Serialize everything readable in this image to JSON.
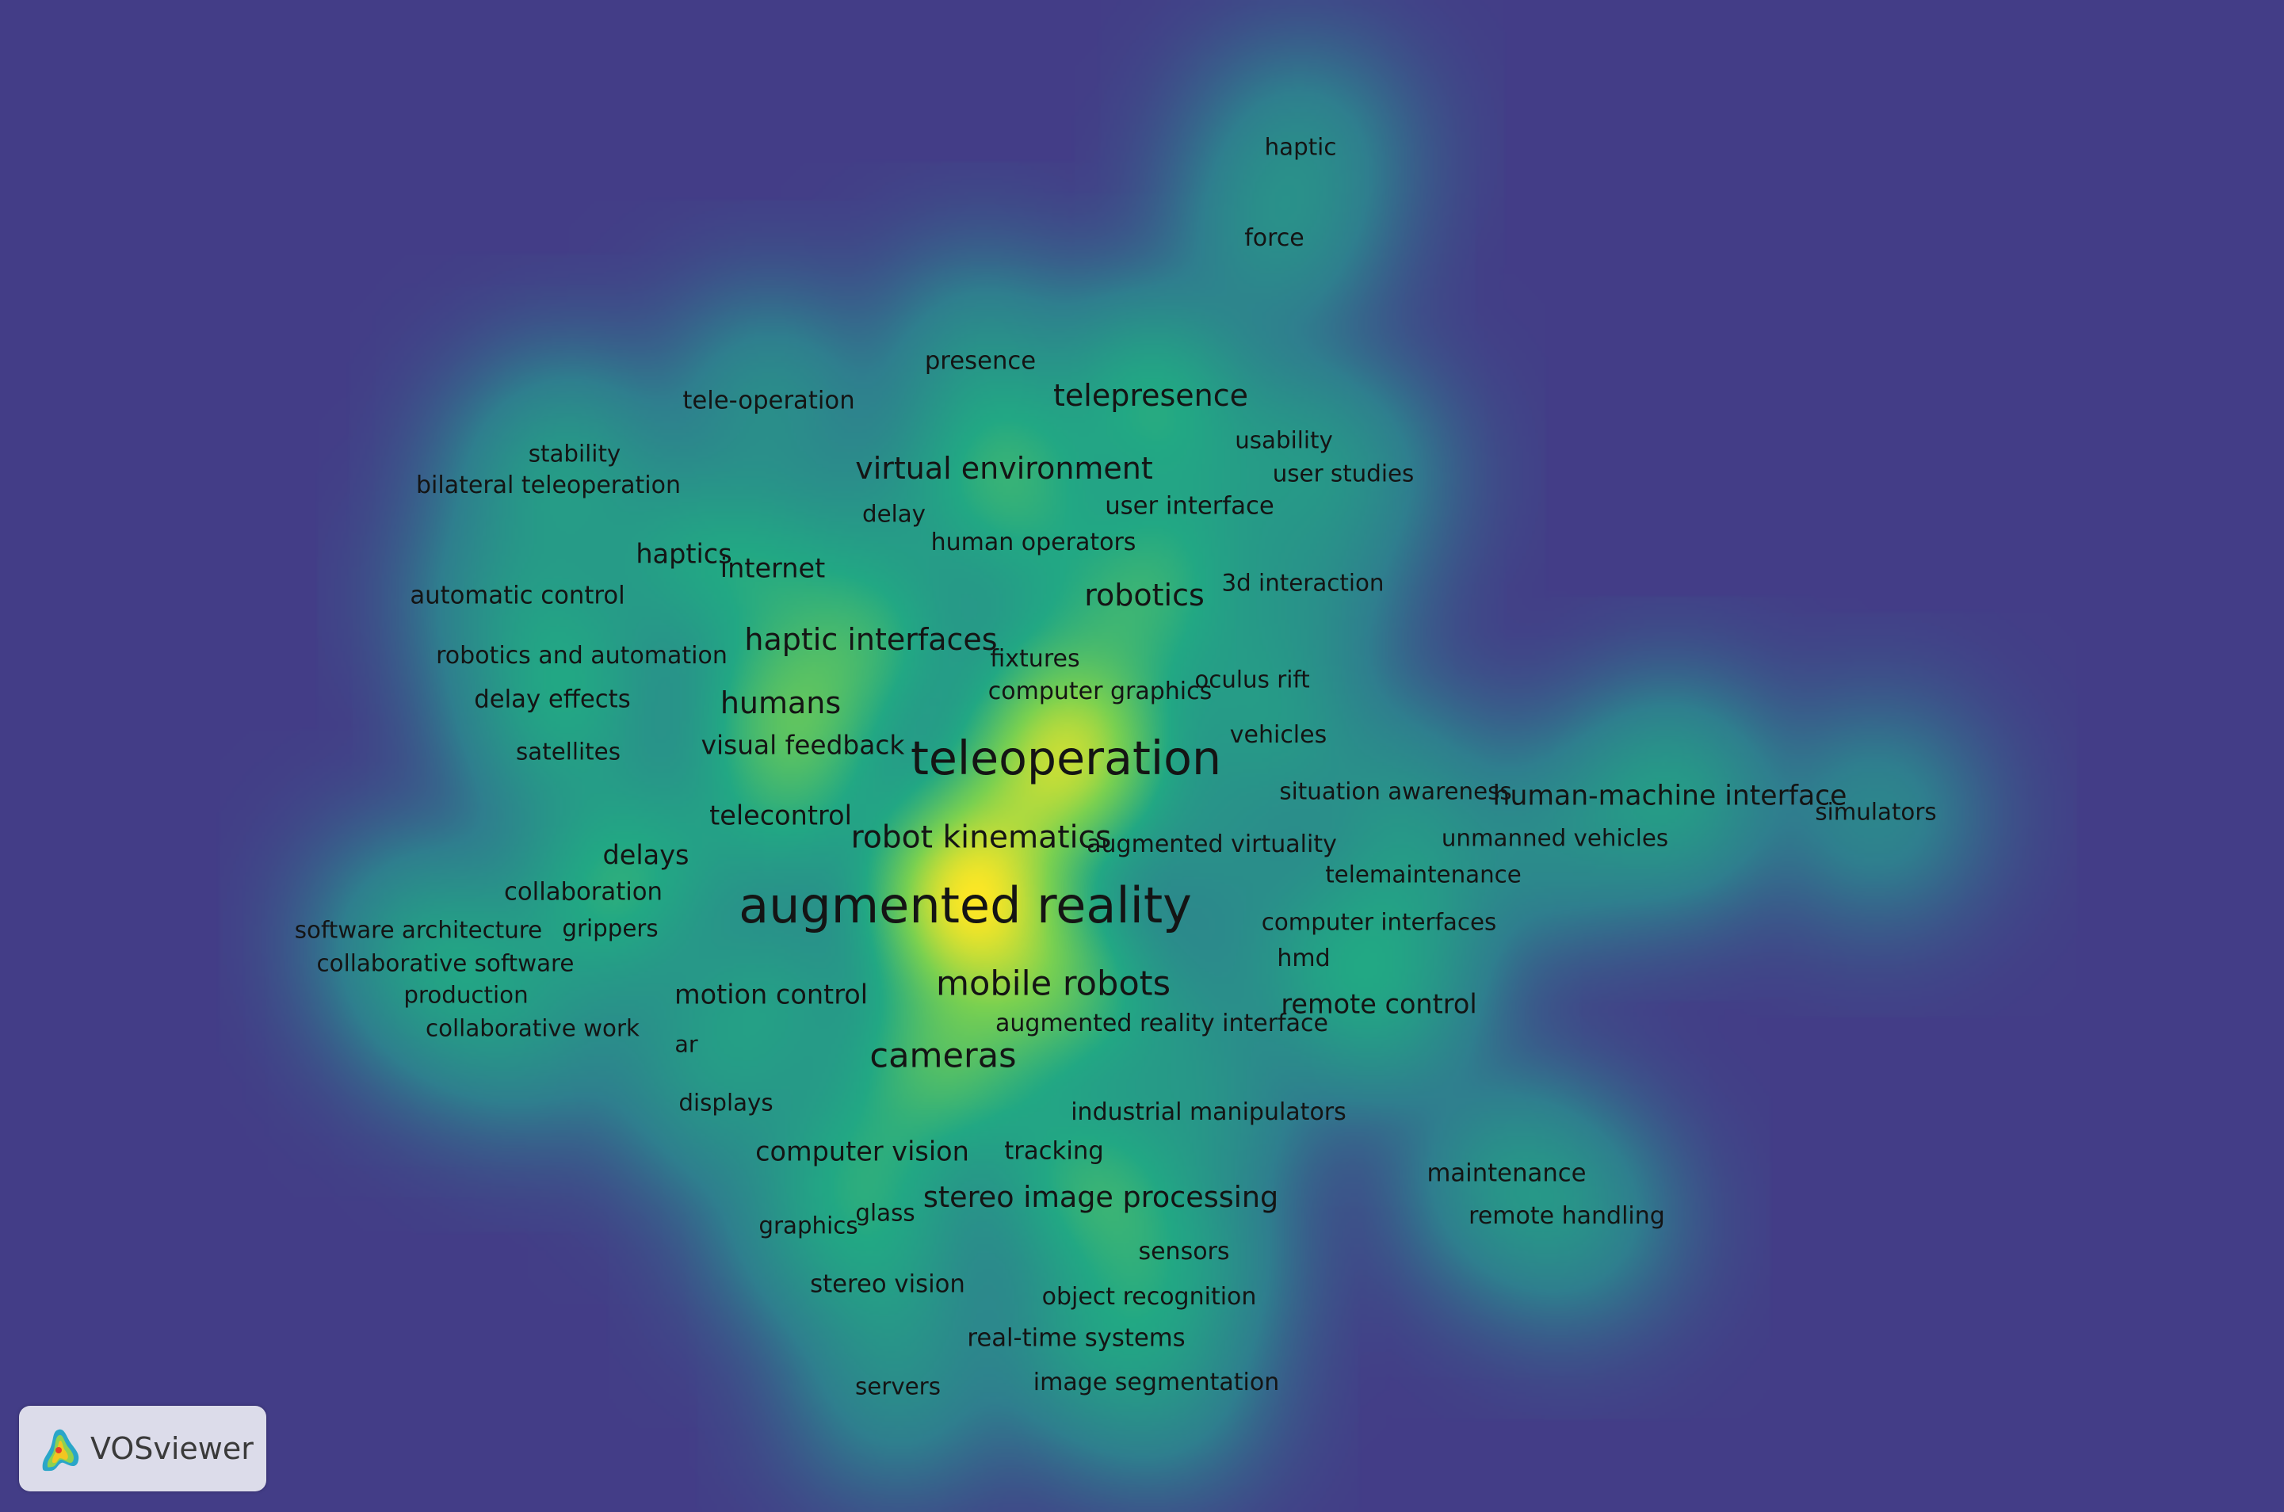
{
  "app": {
    "name": "VOSviewer"
  },
  "colors": {
    "background": "#433d87",
    "heat_ramp": [
      "#433d87",
      "#2f7f8e",
      "#22a884",
      "#7ad151",
      "#fde725"
    ],
    "label": "#141414"
  },
  "view": {
    "type": "density visualization"
  },
  "terms": [
    {
      "label": "augmented reality",
      "weight": 1.0
    },
    {
      "label": "teleoperation",
      "weight": 0.92
    },
    {
      "label": "mobile robots",
      "weight": 0.55
    },
    {
      "label": "cameras",
      "weight": 0.55
    },
    {
      "label": "robot kinematics",
      "weight": 0.45
    },
    {
      "label": "haptic interfaces",
      "weight": 0.42
    },
    {
      "label": "virtual environment",
      "weight": 0.42
    },
    {
      "label": "telepresence",
      "weight": 0.42
    },
    {
      "label": "humans",
      "weight": 0.42
    },
    {
      "label": "robotics",
      "weight": 0.42
    },
    {
      "label": "stereo image processing",
      "weight": 0.38
    },
    {
      "label": "human-machine interface",
      "weight": 0.33
    },
    {
      "label": "telecontrol",
      "weight": 0.3
    },
    {
      "label": "delays",
      "weight": 0.3
    },
    {
      "label": "motion control",
      "weight": 0.3
    },
    {
      "label": "computer vision",
      "weight": 0.3
    },
    {
      "label": "visual feedback",
      "weight": 0.28
    },
    {
      "label": "remote control",
      "weight": 0.3
    },
    {
      "label": "haptics",
      "weight": 0.3
    },
    {
      "label": "internet",
      "weight": 0.3
    },
    {
      "label": "tele-operation",
      "weight": 0.22
    },
    {
      "label": "presence",
      "weight": 0.22
    },
    {
      "label": "user interface",
      "weight": 0.22
    },
    {
      "label": "human operators",
      "weight": 0.2
    },
    {
      "label": "delay",
      "weight": 0.18
    },
    {
      "label": "usability",
      "weight": 0.18
    },
    {
      "label": "user studies",
      "weight": 0.18
    },
    {
      "label": "3d interaction",
      "weight": 0.18
    },
    {
      "label": "automatic control",
      "weight": 0.22
    },
    {
      "label": "robotics and automation",
      "weight": 0.2
    },
    {
      "label": "delay effects",
      "weight": 0.22
    },
    {
      "label": "satellites",
      "weight": 0.18
    },
    {
      "label": "fixtures",
      "weight": 0.2
    },
    {
      "label": "computer graphics",
      "weight": 0.2
    },
    {
      "label": "oculus rift",
      "weight": 0.18
    },
    {
      "label": "vehicles",
      "weight": 0.2
    },
    {
      "label": "situation awareness",
      "weight": 0.18
    },
    {
      "label": "unmanned vehicles",
      "weight": 0.18
    },
    {
      "label": "telemaintenance",
      "weight": 0.18
    },
    {
      "label": "simulators",
      "weight": 0.18
    },
    {
      "label": "augmented virtuality",
      "weight": 0.2
    },
    {
      "label": "computer interfaces",
      "weight": 0.18
    },
    {
      "label": "hmd",
      "weight": 0.2
    },
    {
      "label": "augmented reality interface",
      "weight": 0.2
    },
    {
      "label": "collaboration",
      "weight": 0.22
    },
    {
      "label": "software architecture",
      "weight": 0.18
    },
    {
      "label": "grippers",
      "weight": 0.18
    },
    {
      "label": "collaborative software",
      "weight": 0.18
    },
    {
      "label": "production",
      "weight": 0.18
    },
    {
      "label": "collaborative work",
      "weight": 0.18
    },
    {
      "label": "ar",
      "weight": 0.16
    },
    {
      "label": "displays",
      "weight": 0.18
    },
    {
      "label": "industrial manipulators",
      "weight": 0.2
    },
    {
      "label": "tracking",
      "weight": 0.22
    },
    {
      "label": "graphics",
      "weight": 0.18
    },
    {
      "label": "glass",
      "weight": 0.18
    },
    {
      "label": "sensors",
      "weight": 0.2
    },
    {
      "label": "stereo vision",
      "weight": 0.22
    },
    {
      "label": "object recognition",
      "weight": 0.2
    },
    {
      "label": "real-time systems",
      "weight": 0.22
    },
    {
      "label": "servers",
      "weight": 0.18
    },
    {
      "label": "image segmentation",
      "weight": 0.2
    },
    {
      "label": "maintenance",
      "weight": 0.22
    },
    {
      "label": "remote handling",
      "weight": 0.2
    },
    {
      "label": "haptic",
      "weight": 0.18
    },
    {
      "label": "force",
      "weight": 0.2
    },
    {
      "label": "stability",
      "weight": 0.18
    },
    {
      "label": "bilateral teleoperation",
      "weight": 0.2
    }
  ]
}
